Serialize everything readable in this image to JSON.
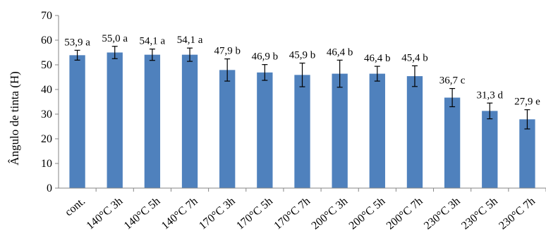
{
  "chart_data": {
    "type": "bar",
    "title": "",
    "xlabel": "",
    "ylabel": "Ângulo de tinta (H)",
    "ylim": [
      0,
      70
    ],
    "yticks": [
      0,
      10,
      20,
      30,
      40,
      50,
      60,
      70
    ],
    "grid": false,
    "legend": "none",
    "bar_color": "#4f81bd",
    "categories": [
      "cont.",
      "140°C 3h",
      "140°C 5h",
      "140°C 7h",
      "170°C 3h",
      "170°C 5h",
      "170°C 7h",
      "200°C 3h",
      "200°C 5h",
      "200°C 7h",
      "230°C 3h",
      "230°C 5h",
      "230°C 7h"
    ],
    "values": [
      53.9,
      55.0,
      54.1,
      54.1,
      47.9,
      46.9,
      45.9,
      46.4,
      46.4,
      45.4,
      36.7,
      31.3,
      27.9
    ],
    "errors": [
      2.0,
      2.5,
      2.3,
      2.7,
      4.5,
      3.2,
      4.8,
      5.5,
      3.0,
      4.2,
      3.7,
      3.2,
      3.9
    ],
    "data_labels": [
      "53,9 a",
      "55,0 a",
      "54,1 a",
      "54,1 a",
      "47,9 b",
      "46,9 b",
      "45,9 b",
      "46,4 b",
      "46,4 b",
      "45,4 b",
      "36,7 c",
      "31,3 d",
      "27,9 e"
    ]
  }
}
